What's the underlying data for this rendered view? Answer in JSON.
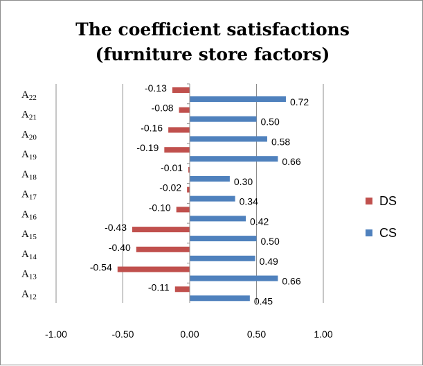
{
  "chart_data": {
    "type": "bar",
    "orientation": "horizontal",
    "title_lines": [
      "The coefficient satisfactions",
      "(furniture store factors)"
    ],
    "categories": [
      "A12",
      "A13",
      "A14",
      "A15",
      "A16",
      "A17",
      "A18",
      "A19",
      "A20",
      "A21",
      "A22"
    ],
    "category_labels": [
      {
        "base": "A",
        "sub": "12"
      },
      {
        "base": "A",
        "sub": "13"
      },
      {
        "base": "A",
        "sub": "14"
      },
      {
        "base": "A",
        "sub": "15"
      },
      {
        "base": "A",
        "sub": "16"
      },
      {
        "base": "A",
        "sub": "17"
      },
      {
        "base": "A",
        "sub": "18"
      },
      {
        "base": "A",
        "sub": "19"
      },
      {
        "base": "A",
        "sub": "20"
      },
      {
        "base": "A",
        "sub": "21"
      },
      {
        "base": "A",
        "sub": "22"
      }
    ],
    "series": [
      {
        "name": "DS",
        "color": "#c0504d",
        "values": [
          -0.11,
          -0.54,
          -0.4,
          -0.43,
          -0.1,
          -0.02,
          -0.01,
          -0.19,
          -0.16,
          -0.08,
          -0.13
        ],
        "labels": [
          "-0.11",
          "-0.54",
          "-0.40",
          "-0.43",
          "-0.10",
          "-0.02",
          "-0.01",
          "-0.19",
          "-0.16",
          "-0.08",
          "-0.13"
        ]
      },
      {
        "name": "CS",
        "color": "#4f81bd",
        "values": [
          0.45,
          0.66,
          0.49,
          0.5,
          0.42,
          0.34,
          0.3,
          0.66,
          0.58,
          0.5,
          0.72
        ],
        "labels": [
          "0.45",
          "0.66",
          "0.49",
          "0.50",
          "0.42",
          "0.34",
          "0.30",
          "0.66",
          "0.58",
          "0.50",
          "0.72"
        ]
      }
    ],
    "xlim": [
      -1.0,
      1.0
    ],
    "xticks": [
      "-1.00",
      "-0.50",
      "0.00",
      "0.50",
      "1.00"
    ],
    "xtick_values": [
      -1.0,
      -0.5,
      0.0,
      0.5,
      1.0
    ],
    "grid": "vertical",
    "legend_position": "right"
  }
}
